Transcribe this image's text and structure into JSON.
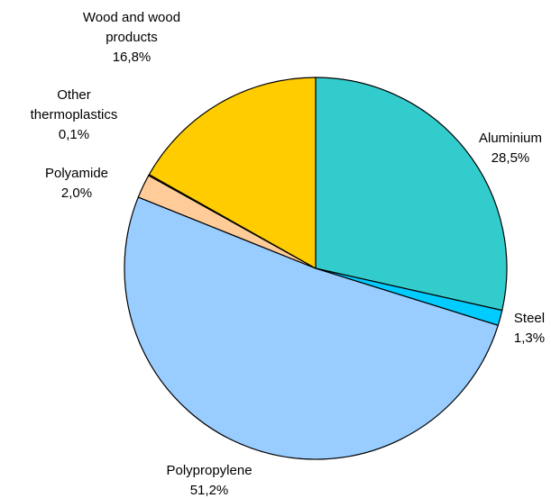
{
  "chart_data": {
    "type": "pie",
    "title": "",
    "start_angle_deg": 0,
    "direction": "clockwise",
    "slices": [
      {
        "name": "Aluminium",
        "value": 28.5,
        "color": "#33CCCC",
        "label_lines": [
          "Aluminium",
          "28,5%"
        ]
      },
      {
        "name": "Steel",
        "value": 1.3,
        "color": "#00CCFF",
        "label_lines": [
          "Steel",
          "1,3%"
        ]
      },
      {
        "name": "Polypropylene",
        "value": 51.2,
        "color": "#99CCFF",
        "label_lines": [
          "Polypropylene",
          "51,2%"
        ]
      },
      {
        "name": "Polyamide",
        "value": 2.0,
        "color": "#FFCC99",
        "label_lines": [
          "Polyamide",
          "2,0%"
        ]
      },
      {
        "name": "Other thermoplastics",
        "value": 0.1,
        "color": "#FF9900",
        "label_lines": [
          "Other",
          "thermoplastics",
          "0,1%"
        ]
      },
      {
        "name": "Wood and wood products",
        "value": 16.8,
        "color": "#FFCC00",
        "label_lines": [
          "Wood and wood",
          "products",
          "16,8%"
        ]
      }
    ]
  }
}
